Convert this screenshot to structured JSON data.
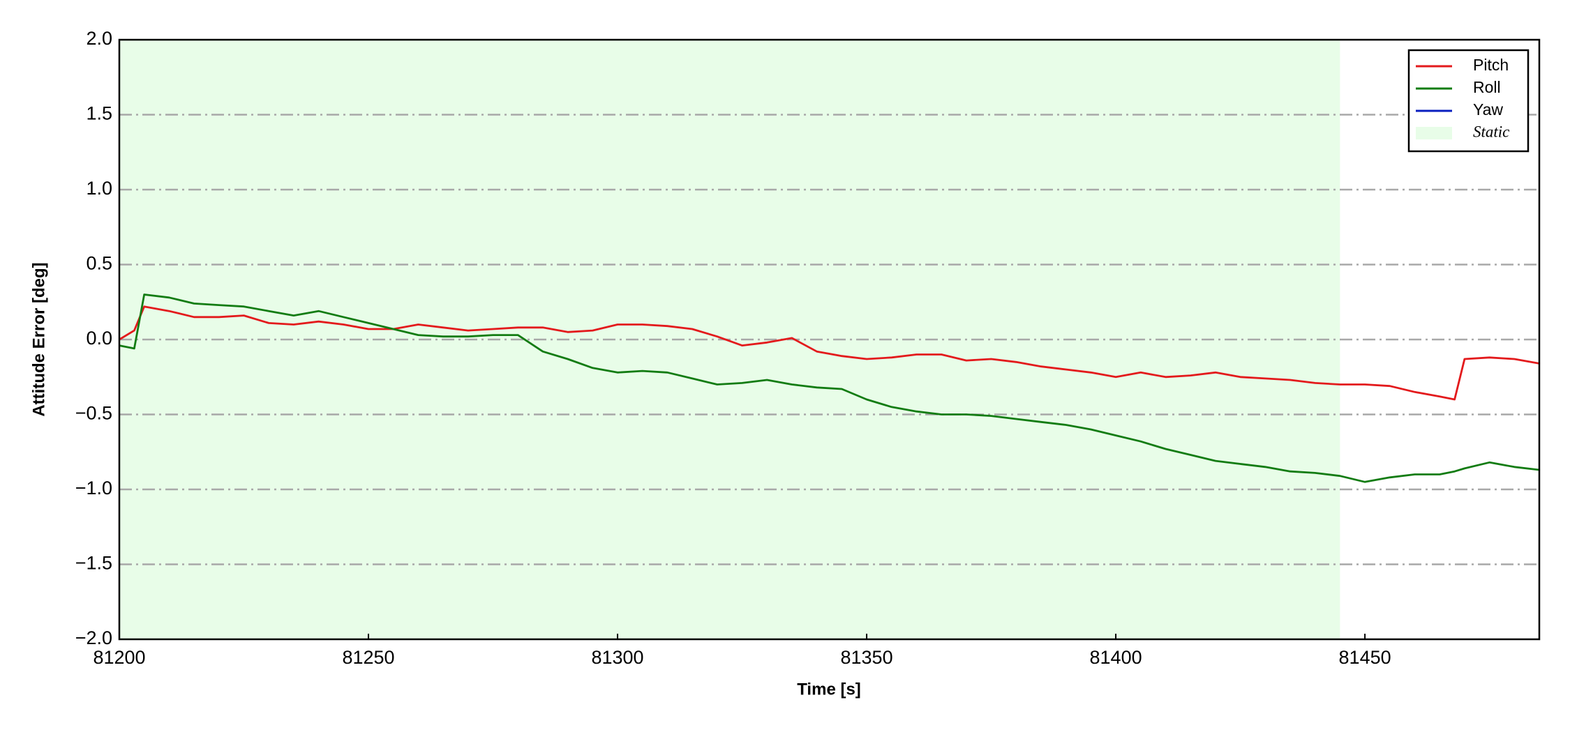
{
  "chart_data": {
    "type": "line",
    "xlabel": "Time [s]",
    "ylabel": "Attitude Error [deg]",
    "x": [
      81200,
      81203,
      81205,
      81210,
      81215,
      81220,
      81225,
      81230,
      81235,
      81240,
      81245,
      81250,
      81255,
      81260,
      81265,
      81270,
      81275,
      81280,
      81285,
      81290,
      81295,
      81300,
      81305,
      81310,
      81315,
      81320,
      81325,
      81330,
      81335,
      81340,
      81345,
      81350,
      81355,
      81360,
      81365,
      81370,
      81375,
      81380,
      81385,
      81390,
      81395,
      81400,
      81405,
      81410,
      81415,
      81420,
      81425,
      81430,
      81435,
      81440,
      81445,
      81450,
      81455,
      81460,
      81465,
      81468,
      81470,
      81475,
      81480,
      81485
    ],
    "series": [
      {
        "name": "Pitch",
        "color": "#e31a1c",
        "values": [
          0.0,
          0.06,
          0.22,
          0.19,
          0.15,
          0.15,
          0.16,
          0.11,
          0.1,
          0.12,
          0.1,
          0.07,
          0.07,
          0.1,
          0.08,
          0.06,
          0.07,
          0.08,
          0.08,
          0.05,
          0.06,
          0.1,
          0.1,
          0.09,
          0.07,
          0.02,
          -0.04,
          -0.02,
          0.01,
          -0.08,
          -0.11,
          -0.13,
          -0.12,
          -0.1,
          -0.1,
          -0.14,
          -0.13,
          -0.15,
          -0.18,
          -0.2,
          -0.22,
          -0.25,
          -0.22,
          -0.25,
          -0.24,
          -0.22,
          -0.25,
          -0.26,
          -0.27,
          -0.29,
          -0.3,
          -0.3,
          -0.31,
          -0.35,
          -0.38,
          -0.4,
          -0.13,
          -0.12,
          -0.13,
          -0.16
        ]
      },
      {
        "name": "Roll",
        "color": "#137c13",
        "values": [
          -0.04,
          -0.06,
          0.3,
          0.28,
          0.24,
          0.23,
          0.22,
          0.19,
          0.16,
          0.19,
          0.15,
          0.11,
          0.07,
          0.03,
          0.02,
          0.02,
          0.03,
          0.03,
          -0.08,
          -0.13,
          -0.19,
          -0.22,
          -0.21,
          -0.22,
          -0.26,
          -0.3,
          -0.29,
          -0.27,
          -0.3,
          -0.32,
          -0.33,
          -0.4,
          -0.45,
          -0.48,
          -0.5,
          -0.5,
          -0.51,
          -0.53,
          -0.55,
          -0.57,
          -0.6,
          -0.64,
          -0.68,
          -0.73,
          -0.77,
          -0.81,
          -0.83,
          -0.85,
          -0.88,
          -0.89,
          -0.91,
          -0.95,
          -0.92,
          -0.9,
          -0.9,
          -0.88,
          -0.86,
          -0.82,
          -0.85,
          -0.87
        ]
      },
      {
        "name": "Yaw",
        "color": "#0a1fbf",
        "values": [
          null,
          null,
          null,
          null,
          null,
          null,
          null,
          null,
          null,
          null,
          null,
          null,
          null,
          null,
          null,
          null,
          null,
          null,
          null,
          null,
          null,
          null,
          null,
          null,
          null,
          null,
          null,
          null,
          null,
          null,
          null,
          null,
          null,
          null,
          null,
          null,
          null,
          null,
          null,
          null,
          null,
          null,
          null,
          null,
          null,
          null,
          null,
          null,
          null,
          null,
          null,
          null,
          null,
          null,
          null,
          null,
          null,
          null,
          null,
          null
        ]
      }
    ],
    "shaded_region": {
      "label": "Static",
      "x": [
        81200,
        81445
      ],
      "color": "#e8fde8"
    },
    "xlim": [
      81200,
      81485
    ],
    "xticks": [
      81200,
      81250,
      81300,
      81350,
      81400,
      81450
    ],
    "ylim": [
      -2.0,
      2.0
    ],
    "yticks": [
      {
        "value": -2.0,
        "label": "−2.0"
      },
      {
        "value": -1.5,
        "label": "−1.5"
      },
      {
        "value": -1.0,
        "label": "−1.0"
      },
      {
        "value": -0.5,
        "label": "−0.5"
      },
      {
        "value": 0.0,
        "label": "0.0"
      },
      {
        "value": 0.5,
        "label": "0.5"
      },
      {
        "value": 1.0,
        "label": "1.0"
      },
      {
        "value": 1.5,
        "label": "1.5"
      },
      {
        "value": 2.0,
        "label": "2.0"
      }
    ],
    "grid": true,
    "legend": "upper right"
  }
}
